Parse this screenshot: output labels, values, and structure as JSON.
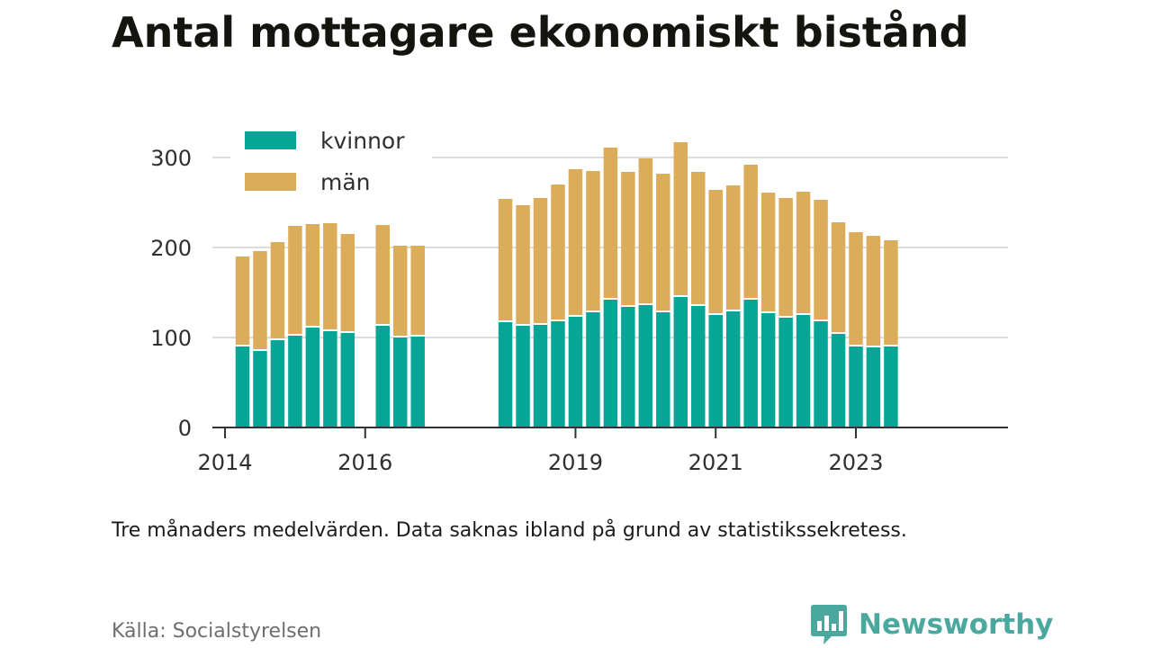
{
  "title": "Antal mottagare ekonomiskt bistånd",
  "note": "Tre månaders medelvärden. Data saknas ibland på grund av statistikssekretess.",
  "source": "Källa: Socialstyrelsen",
  "brand": {
    "name": "Newsworthy",
    "icon": "newsworthy-chart-bubble-icon",
    "color": "#4aa89f"
  },
  "colors": {
    "kvinnor": "#07a596",
    "man": "#dbad5a",
    "grid": "#dcdcdc",
    "axis": "#333333",
    "separator": "#ffffff"
  },
  "chart_data": {
    "type": "bar",
    "stacked": true,
    "title": "Antal mottagare ekonomiskt bistånd",
    "xlabel": "",
    "ylabel": "",
    "ylim": [
      0,
      300
    ],
    "yticks": [
      0,
      100,
      200,
      300
    ],
    "xlim": [
      2013.82,
      2025.17
    ],
    "xticks": [
      2014,
      2016,
      2019,
      2021,
      2023
    ],
    "grid": true,
    "legend": "top-left",
    "x": [
      2014.25,
      2014.5,
      2014.75,
      2015.0,
      2015.25,
      2015.5,
      2015.75,
      2016.25,
      2016.5,
      2016.75,
      2018.0,
      2018.25,
      2018.5,
      2018.75,
      2019.0,
      2019.25,
      2019.5,
      2019.75,
      2020.0,
      2020.25,
      2020.5,
      2020.75,
      2021.0,
      2021.25,
      2021.5,
      2021.75,
      2022.0,
      2022.25,
      2022.5,
      2022.75,
      2023.0,
      2023.25,
      2023.5
    ],
    "series": [
      {
        "name": "kvinnor",
        "values": [
          91,
          86,
          98,
          103,
          112,
          108,
          106,
          114,
          101,
          102,
          118,
          114,
          115,
          119,
          124,
          129,
          143,
          135,
          137,
          129,
          146,
          136,
          126,
          130,
          143,
          128,
          123,
          126,
          119,
          105,
          91,
          90,
          91
        ]
      },
      {
        "name": "män",
        "values": [
          99,
          110,
          108,
          121,
          114,
          119,
          109,
          111,
          101,
          100,
          136,
          133,
          140,
          151,
          163,
          156,
          168,
          149,
          162,
          153,
          171,
          148,
          138,
          139,
          149,
          133,
          132,
          136,
          134,
          123,
          126,
          123,
          117
        ]
      }
    ]
  }
}
